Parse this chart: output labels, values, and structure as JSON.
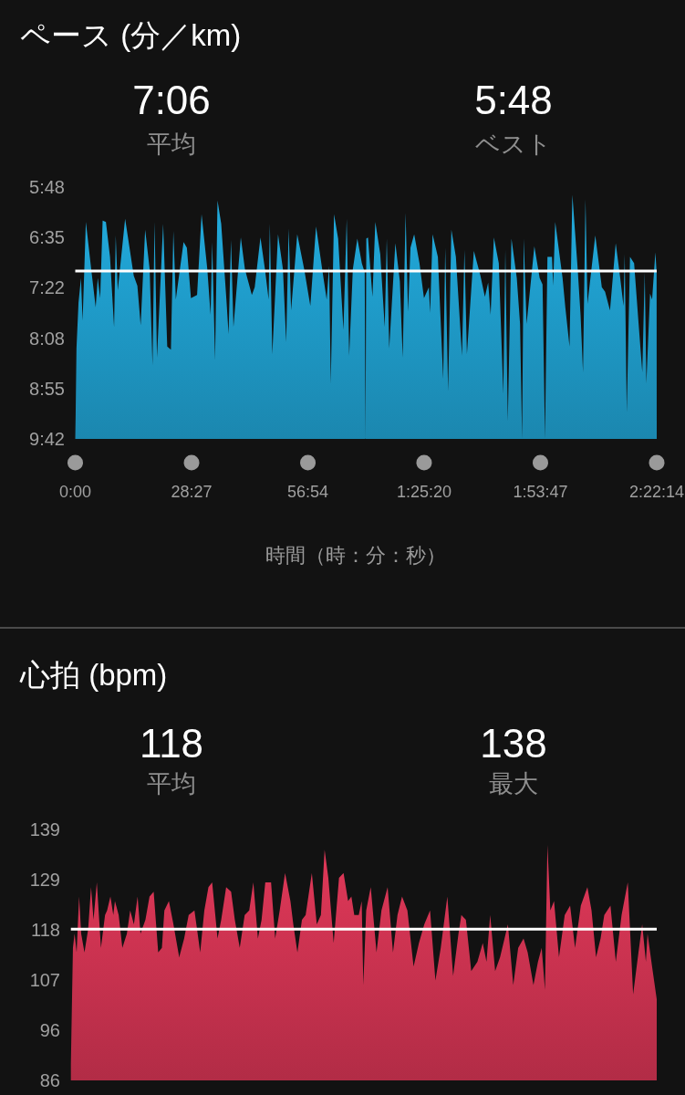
{
  "chart_data": [
    {
      "type": "area",
      "title": "ペース (分／km)",
      "annotations": [
        "7:06",
        "平均",
        "5:48",
        "ベスト"
      ],
      "xlabel": "時間（時：分：秒）",
      "x": [
        0,
        0.1,
        0.3,
        0.8,
        1.4,
        1.8,
        2.6,
        3.9,
        5.0,
        5.5,
        6.1,
        6.7,
        7.5,
        8.5,
        9.5,
        9.9,
        10.4,
        12.2,
        14.3,
        15.2,
        16.0,
        17.1,
        18.2,
        18.9,
        19.4,
        20.0,
        21.5,
        22.5,
        23.4,
        24.0,
        24.6,
        26.5,
        27.3,
        28.3,
        29.8,
        30.9,
        32.3,
        33.1,
        33.5,
        34.2,
        34.8,
        35.7,
        37.0,
        37.5,
        38.1,
        38.7,
        40.5,
        41.5,
        43.2,
        43.9,
        45.3,
        46.4,
        47.3,
        47.6,
        48.2,
        49.6,
        50.8,
        51.6,
        52.2,
        52.8,
        54.3,
        56.0,
        57.5,
        58.9,
        60.4,
        61.5,
        62.1,
        62.5,
        63.3,
        64.3,
        65.6,
        66.4,
        67.0,
        67.9,
        69.0,
        70.1,
        70.8,
        71.0,
        71.2,
        71.6,
        72.7,
        73.4,
        74.6,
        75.7,
        76.2,
        76.8,
        78.3,
        79.4,
        80.1,
        80.8,
        81.4,
        82.0,
        82.9,
        84.2,
        85.3,
        86.5,
        86.8,
        87.4,
        88.7,
        90.0,
        90.5,
        91.2,
        92.0,
        93.1,
        94.6,
        95.2,
        95.8,
        97.5,
        99.1,
        100.2,
        101.0,
        101.6,
        102.4,
        103.6,
        104.7,
        105.2,
        105.8,
        106.7,
        108.0,
        108.8,
        109.3,
        109.7,
        110.4,
        112.3,
        113.6,
        114.3,
        114.9,
        115.5,
        116.6,
        116.9,
        117.4,
        119.2,
        119.9,
        120.9,
        121.6,
        122.9,
        123.6,
        124.2,
        124.8,
        125.3,
        127.2,
        128.8,
        129.6,
        130.8,
        132.2,
        133.3,
        134.1,
        134.4,
        134.9,
        135.7,
        136.7,
        137.8,
        138.7,
        139.3,
        139.7,
        140.6,
        141.1,
        141.9,
        142.2,
        142.23
      ],
      "values": [
        9.7,
        9.31,
        8.3,
        7.59,
        7.21,
        7.87,
        6.34,
        7.07,
        7.66,
        7.21,
        7.52,
        6.32,
        6.34,
        6.88,
        7.97,
        6.55,
        7.4,
        6.29,
        7.17,
        7.33,
        7.94,
        6.46,
        7.07,
        8.56,
        6.34,
        8.44,
        6.37,
        8.27,
        8.32,
        6.48,
        7.54,
        6.65,
        6.74,
        7.52,
        7.47,
        6.22,
        7.07,
        7.78,
        6.65,
        8.48,
        6.01,
        6.37,
        7.57,
        8.08,
        6.62,
        7.97,
        6.58,
        7.07,
        7.47,
        7.35,
        6.58,
        7.07,
        7.54,
        6.37,
        8.39,
        6.53,
        7.07,
        8.2,
        6.44,
        7.71,
        6.53,
        7.07,
        7.64,
        6.41,
        7.07,
        7.54,
        7.02,
        8.84,
        6.22,
        6.6,
        8.01,
        6.29,
        8.41,
        7.07,
        6.6,
        6.98,
        7.12,
        9.7,
        6.6,
        6.58,
        7.5,
        6.34,
        6.84,
        7.97,
        6.6,
        8.3,
        6.67,
        7.26,
        8.44,
        6.2,
        7.73,
        6.74,
        6.53,
        6.98,
        7.52,
        7.35,
        7.75,
        6.53,
        6.88,
        8.77,
        6.74,
        8.96,
        6.46,
        6.88,
        8.41,
        6.77,
        8.39,
        6.79,
        7.17,
        7.5,
        7.28,
        7.78,
        6.58,
        6.98,
        9.0,
        6.77,
        9.43,
        6.6,
        7.21,
        7.92,
        9.7,
        6.6,
        7.92,
        6.72,
        7.21,
        7.31,
        9.7,
        6.88,
        6.88,
        7.33,
        6.34,
        7.21,
        7.68,
        8.27,
        5.92,
        7.07,
        7.78,
        8.67,
        5.99,
        7.61,
        6.55,
        7.35,
        7.42,
        7.71,
        6.67,
        7.21,
        7.64,
        6.84,
        9.29,
        6.88,
        6.98,
        7.92,
        8.67,
        7.12,
        8.84,
        7.45,
        7.54,
        6.81,
        7.12,
        9.7
      ],
      "color": "#22ade0",
      "xlim": [
        0,
        142.23
      ],
      "xticks": [
        {
          "value": 0,
          "label": "0:00"
        },
        {
          "value": 28.45,
          "label": "28:27"
        },
        {
          "value": 56.9,
          "label": "56:54"
        },
        {
          "value": 85.33,
          "label": "1:25:20"
        },
        {
          "value": 113.78,
          "label": "1:53:47"
        },
        {
          "value": 142.23,
          "label": "2:22:14"
        }
      ],
      "ylim": [
        9.7,
        5.8
      ],
      "yticks": [
        {
          "value": 5.8,
          "label": "5:48"
        },
        {
          "value": 6.58,
          "label": "6:35"
        },
        {
          "value": 7.36,
          "label": "7:22"
        },
        {
          "value": 8.14,
          "label": "8:08"
        },
        {
          "value": 8.92,
          "label": "8:55"
        },
        {
          "value": 9.7,
          "label": "9:42"
        }
      ],
      "ref_lines": [
        {
          "axis": "y",
          "value": 7.1,
          "color": "#ffffff"
        }
      ]
    },
    {
      "type": "area",
      "title": "心拍 (bpm)",
      "annotations": [
        "118",
        "平均",
        "138",
        "最大"
      ],
      "x": [
        0.0,
        0.5,
        0.9,
        1.4,
        2.0,
        2.5,
        3.3,
        4.2,
        4.9,
        5.5,
        6.3,
        6.8,
        7.3,
        8.3,
        8.8,
        9.6,
        10.3,
        10.7,
        11.6,
        12.5,
        13.6,
        14.4,
        15.3,
        16.2,
        16.9,
        18.1,
        19.1,
        20.1,
        21.2,
        22.1,
        22.7,
        23.8,
        24.9,
        26.3,
        27.5,
        28.6,
        30.0,
        31.4,
        32.4,
        33.4,
        34.3,
        35.6,
        36.5,
        37.7,
        38.9,
        39.8,
        41.0,
        42.2,
        43.3,
        44.3,
        45.4,
        46.3,
        47.2,
        48.6,
        49.6,
        50.7,
        52.0,
        53.3,
        54.0,
        55.0,
        56.1,
        57.0,
        58.5,
        59.7,
        60.7,
        61.6,
        62.5,
        63.8,
        65.1,
        66.2,
        67.3,
        68.1,
        68.8,
        69.9,
        70.6,
        71.0,
        71.7,
        72.8,
        74.2,
        75.4,
        76.9,
        78.2,
        79.3,
        80.4,
        81.7,
        83.2,
        84.5,
        85.8,
        87.2,
        88.5,
        89.8,
        91.4,
        92.8,
        94.1,
        94.8,
        95.9,
        97.2,
        98.7,
        100.0,
        100.9,
        101.8,
        103.0,
        104.2,
        106.1,
        107.4,
        108.6,
        109.9,
        110.9,
        112.3,
        113.4,
        114.3,
        115.1,
        115.7,
        116.4,
        117.3,
        118.5,
        119.9,
        121.2,
        122.4,
        123.8,
        125.4,
        126.4,
        127.5,
        128.6,
        129.5,
        131.0,
        132.3,
        133.7,
        135.2,
        136.5,
        137.8,
        138.7,
        139.6,
        140.0,
        141.1,
        142.23
      ],
      "values": [
        89,
        114,
        117,
        113,
        125,
        117,
        113,
        118,
        127,
        120,
        128,
        121,
        114,
        121,
        122,
        125,
        121,
        124,
        121,
        114,
        117,
        122,
        119,
        125,
        117,
        120,
        125,
        126,
        113,
        114,
        122,
        124,
        119,
        112,
        116,
        121,
        122,
        113,
        122,
        127,
        128,
        116,
        120,
        127,
        126,
        120,
        114,
        121,
        122,
        128,
        116,
        120,
        128,
        128,
        116,
        122,
        130,
        124,
        119,
        113,
        120,
        121,
        130,
        119,
        121,
        135,
        129,
        115,
        129,
        130,
        124,
        125,
        121,
        121,
        124,
        106,
        122,
        127,
        113,
        122,
        127,
        113,
        121,
        125,
        122,
        110,
        115,
        119,
        122,
        107,
        114,
        125,
        108,
        117,
        121,
        120,
        109,
        111,
        115,
        111,
        121,
        109,
        112,
        119,
        106,
        114,
        116,
        113,
        106,
        111,
        114,
        105,
        136,
        122,
        124,
        112,
        121,
        123,
        114,
        123,
        127,
        122,
        112,
        116,
        121,
        123,
        111,
        121,
        128,
        104,
        113,
        119,
        111,
        117,
        110,
        103
      ],
      "color": "#e4395a",
      "xlim": [
        0,
        142.23
      ],
      "ylim": [
        85.6,
        139.4
      ],
      "yticks": [
        {
          "value": 85.6,
          "label": "86"
        },
        {
          "value": 96.4,
          "label": "96"
        },
        {
          "value": 107.1,
          "label": "107"
        },
        {
          "value": 117.9,
          "label": "118"
        },
        {
          "value": 128.6,
          "label": "129"
        },
        {
          "value": 139.4,
          "label": "139"
        }
      ],
      "tick_labels": "y",
      "ref_lines": [
        {
          "axis": "y",
          "value": 118,
          "color": "#ffffff"
        }
      ]
    }
  ]
}
